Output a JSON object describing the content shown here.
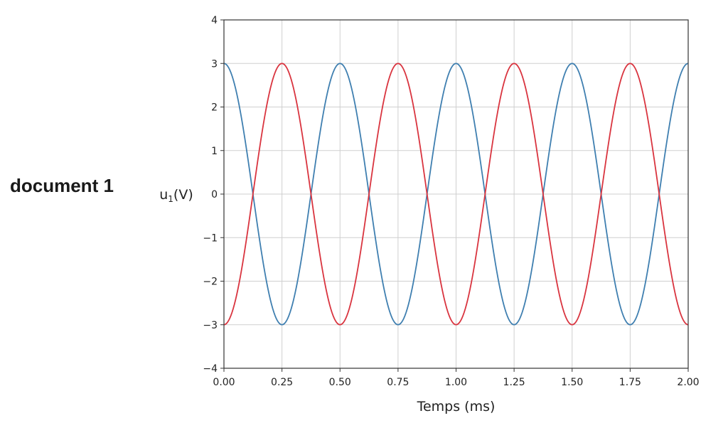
{
  "document_label": "document 1",
  "chart_data": {
    "type": "line",
    "xlabel": "Temps (ms)",
    "ylabel_main": "u",
    "ylabel_sub": "1",
    "ylabel_unit": "(V)",
    "xlim": [
      0,
      2
    ],
    "ylim": [
      -4,
      4
    ],
    "x_ticks": [
      0,
      0.25,
      0.5,
      0.75,
      1.0,
      1.25,
      1.5,
      1.75,
      2.0
    ],
    "x_tick_labels": [
      "0.00",
      "0.25",
      "0.50",
      "0.75",
      "1.00",
      "1.25",
      "1.50",
      "1.75",
      "2.00"
    ],
    "y_ticks": [
      -4,
      -3,
      -2,
      -1,
      0,
      1,
      2,
      3,
      4
    ],
    "y_tick_labels": [
      "−4",
      "−3",
      "−2",
      "−1",
      "0",
      "1",
      "2",
      "3",
      "4"
    ],
    "grid": true,
    "series": [
      {
        "color": "#3f7fb0",
        "amplitude": 3,
        "period_ms": 0.5,
        "initial_value": 3,
        "x": [
          0,
          0.125,
          0.25,
          0.375,
          0.5,
          0.625,
          0.75,
          0.875,
          1.0,
          1.125,
          1.25,
          1.375,
          1.5,
          1.625,
          1.75,
          1.875,
          2.0
        ],
        "y": [
          3,
          0,
          -3,
          0,
          3,
          0,
          -3,
          0,
          3,
          0,
          -3,
          0,
          3,
          0,
          -3,
          0,
          3
        ]
      },
      {
        "color": "#d9343f",
        "amplitude": 3,
        "period_ms": 0.5,
        "initial_value": -3,
        "x": [
          0,
          0.125,
          0.25,
          0.375,
          0.5,
          0.625,
          0.75,
          0.875,
          1.0,
          1.125,
          1.25,
          1.375,
          1.5,
          1.625,
          1.75,
          1.875,
          2.0
        ],
        "y": [
          -3,
          0,
          3,
          0,
          -3,
          0,
          3,
          0,
          -3,
          0,
          3,
          0,
          -3,
          0,
          3,
          0,
          -3
        ]
      }
    ]
  }
}
